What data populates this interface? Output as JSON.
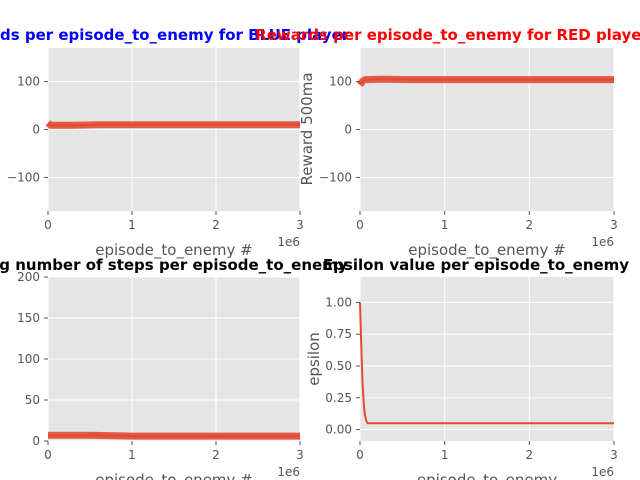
{
  "chart_data": [
    {
      "type": "line",
      "title": "Rewards per episode_to_enemy for BLUE player",
      "title_color": "#0000ff",
      "xlabel": "episode_to_enemy #",
      "ylabel": "",
      "x_offset_label": "1e6",
      "xlim": [
        0,
        3
      ],
      "ylim": [
        -170,
        170
      ],
      "xticks": [
        0,
        1,
        2,
        3
      ],
      "xtick_labels": [
        "0",
        "1",
        "2",
        "3"
      ],
      "yticks": [
        100,
        0,
        -100
      ],
      "ytick_labels": [
        "100",
        "0",
        "−100"
      ],
      "grid": true,
      "band": true,
      "series": [
        {
          "color": "#e24a33",
          "points": [
            [
              0,
              14
            ],
            [
              0.03,
              9
            ],
            [
              0.3,
              9
            ],
            [
              0.6,
              10
            ],
            [
              1.0,
              10
            ],
            [
              1.5,
              10
            ],
            [
              2.0,
              10
            ],
            [
              2.5,
              10
            ],
            [
              3.0,
              10
            ]
          ]
        }
      ]
    },
    {
      "type": "line",
      "title": "Rewards per episode_to_enemy for RED player",
      "title_color": "#ff0000",
      "xlabel": "episode_to_enemy #",
      "ylabel": "Reward 500ma",
      "x_offset_label": "1e6",
      "xlim": [
        0,
        3
      ],
      "ylim": [
        -170,
        170
      ],
      "xticks": [
        0,
        1,
        2,
        3
      ],
      "xtick_labels": [
        "0",
        "1",
        "2",
        "3"
      ],
      "yticks": [
        100,
        0,
        -100
      ],
      "ytick_labels": [
        "100",
        "0",
        "−100"
      ],
      "grid": true,
      "band": true,
      "series": [
        {
          "color": "#e24a33",
          "points": [
            [
              0,
              93
            ],
            [
              0.03,
              101
            ],
            [
              0.06,
              104
            ],
            [
              0.3,
              105
            ],
            [
              0.6,
              104
            ],
            [
              1.0,
              104
            ],
            [
              1.5,
              104
            ],
            [
              2.0,
              104
            ],
            [
              2.5,
              104
            ],
            [
              3.0,
              104
            ]
          ]
        }
      ]
    },
    {
      "type": "line",
      "title": "Moving number of steps per episode_to_enemy",
      "title_color": "#000000",
      "xlabel": "episode_to_enemy #",
      "ylabel": "",
      "x_offset_label": "1e6",
      "xlim": [
        0,
        3
      ],
      "ylim": [
        0,
        200
      ],
      "xticks": [
        0,
        1,
        2,
        3
      ],
      "xtick_labels": [
        "0",
        "1",
        "2",
        "3"
      ],
      "yticks": [
        200,
        150,
        100,
        50,
        0
      ],
      "ytick_labels": [
        "200",
        "150",
        "100",
        "50",
        "0"
      ],
      "grid": true,
      "band": true,
      "series": [
        {
          "color": "#e24a33",
          "points": [
            [
              0,
              7
            ],
            [
              0.5,
              7
            ],
            [
              1.0,
              6
            ],
            [
              1.5,
              6
            ],
            [
              2.0,
              6
            ],
            [
              2.5,
              6
            ],
            [
              3.0,
              6
            ]
          ]
        }
      ]
    },
    {
      "type": "line",
      "title": "Epsilon value per episode_to_enemy",
      "title_color": "#000000",
      "xlabel": "episode_to_enemy",
      "ylabel": "epsilon",
      "x_offset_label": "1e6",
      "xlim": [
        0,
        3
      ],
      "ylim": [
        -0.09,
        1.2
      ],
      "xticks": [
        0,
        1,
        2,
        3
      ],
      "xtick_labels": [
        "0",
        "1",
        "2",
        "3"
      ],
      "yticks": [
        1.0,
        0.75,
        0.5,
        0.25,
        0.0
      ],
      "ytick_labels": [
        "1.00",
        "0.75",
        "0.50",
        "0.25",
        "0.00"
      ],
      "grid": true,
      "band": false,
      "series": [
        {
          "color": "#e24a33",
          "points": [
            [
              0,
              1.0
            ],
            [
              0.01,
              0.78
            ],
            [
              0.02,
              0.55
            ],
            [
              0.03,
              0.37
            ],
            [
              0.04,
              0.25
            ],
            [
              0.05,
              0.16
            ],
            [
              0.06,
              0.11
            ],
            [
              0.07,
              0.08
            ],
            [
              0.08,
              0.06
            ],
            [
              0.09,
              0.05
            ],
            [
              0.1,
              0.05
            ],
            [
              0.5,
              0.05
            ],
            [
              1.0,
              0.05
            ],
            [
              2.0,
              0.05
            ],
            [
              3.0,
              0.05
            ]
          ]
        }
      ]
    }
  ]
}
